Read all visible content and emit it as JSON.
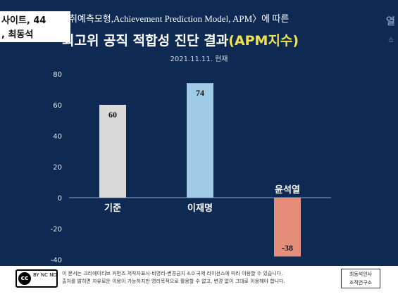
{
  "header": {
    "tab_line1": "사이트, 44",
    "tab_line2": ", 최동석",
    "subtitle": "성취예측모형,Achievement Prediction Model, APM〉에 따른",
    "title_main": "최고위 공직 적합성 진단 결과",
    "title_accent": "(APM지수)",
    "date": "2021.11.11. 현재",
    "corner_text": "열",
    "corner_text2": "쇼"
  },
  "chart_data": {
    "type": "bar",
    "categories": [
      "기준",
      "이재명",
      "윤석열"
    ],
    "values": [
      60,
      74,
      -38
    ],
    "data_labels": [
      "60",
      "74",
      "-38"
    ],
    "colors": [
      "#d9d9d9",
      "#9fcbe6",
      "#e58e7c"
    ],
    "ylim": [
      -40,
      80
    ],
    "yticks": [
      80,
      60,
      40,
      20,
      0,
      -20,
      -40
    ],
    "ytick_labels": [
      "80",
      "60",
      "40",
      "20",
      "0",
      "-20",
      "-40"
    ],
    "xlabel": "",
    "ylabel": "",
    "grid": false,
    "legend": "none"
  },
  "footer": {
    "cc_circle": "cc",
    "cc_terms": "BY NC ND",
    "cc_terms2": "",
    "license_line1": "이 문서는 크리에이티브 커먼즈 저작자표시-비영리-변경금지 4.0 국제 라이선스에 따라 이용할 수 있습니다.",
    "license_line2": "출처를 밝히면 자유로운 이용이 가능하지만 영리목적으로 활용할 수 없고, 변경 없이 그대로 이용해야 합니다.",
    "org_line1": "최동석인사",
    "org_line2": "조직연구소"
  }
}
